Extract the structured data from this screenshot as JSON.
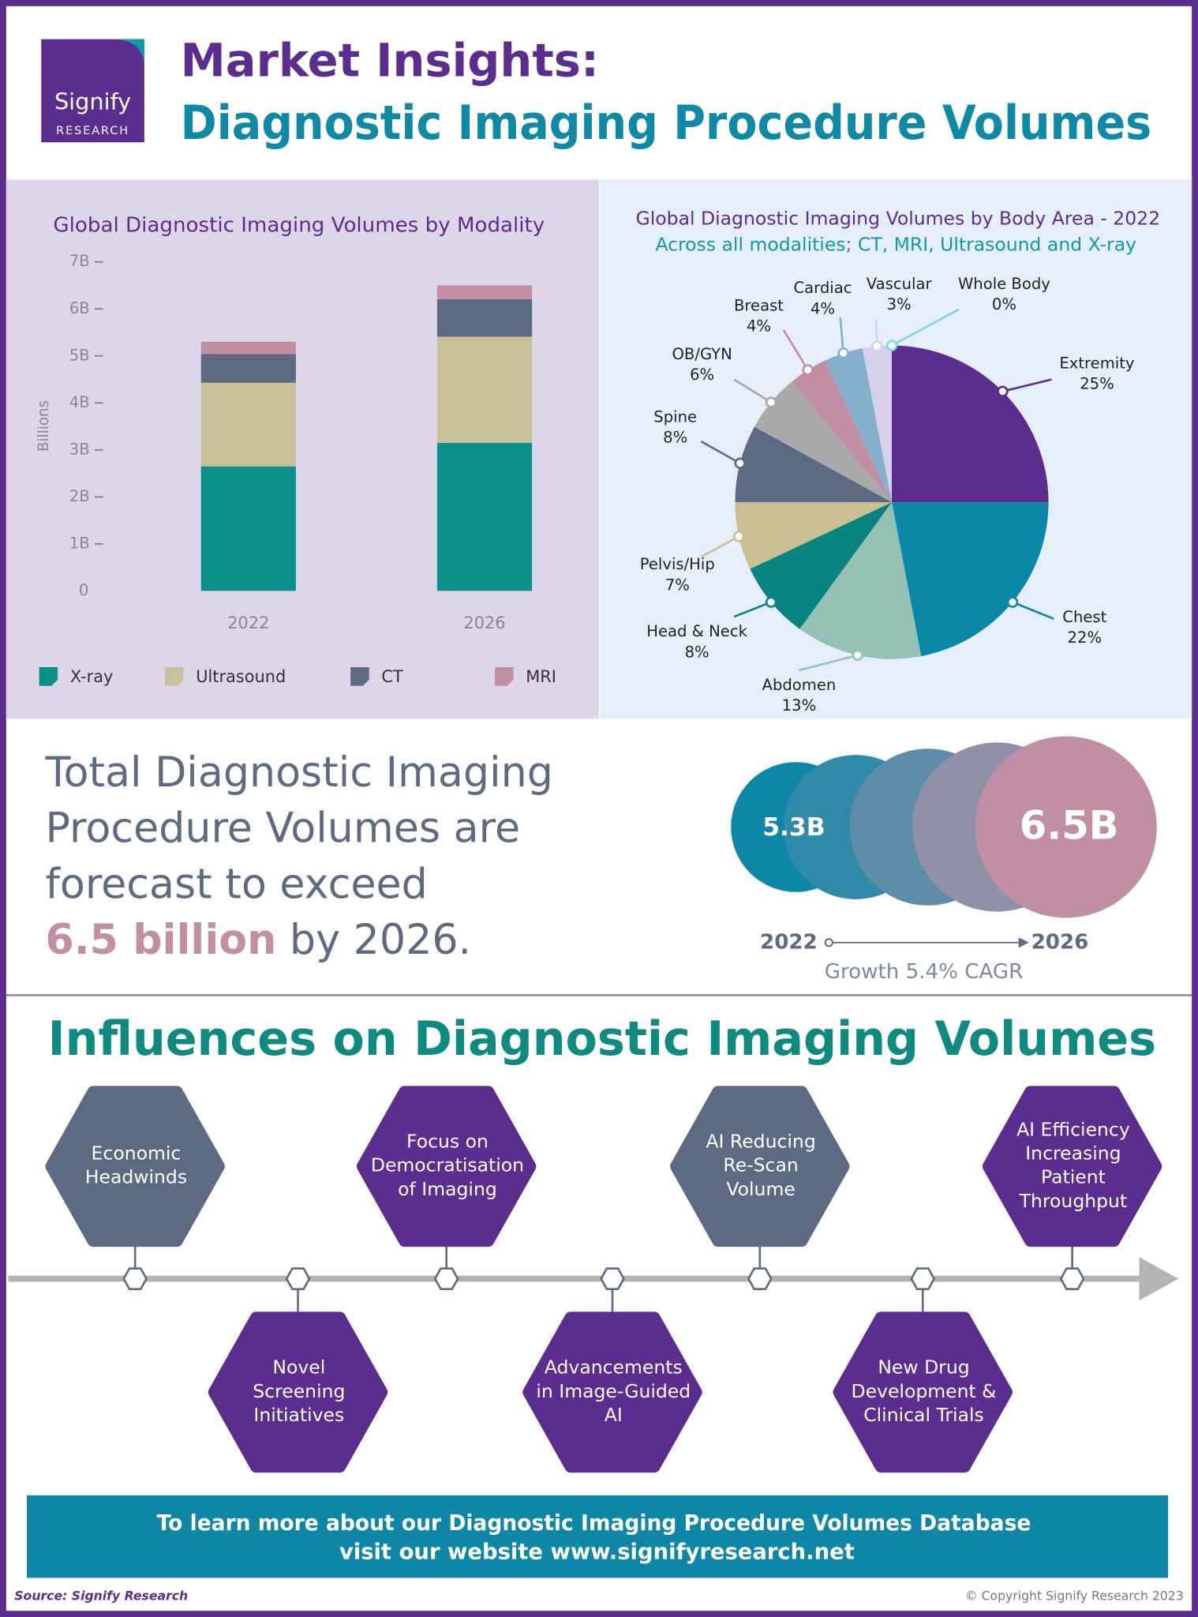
{
  "header": {
    "logo": {
      "name": "Signify",
      "tagline": "RESEARCH"
    },
    "title": "Market Insights:",
    "subtitle": "Diagnostic Imaging Procedure Volumes"
  },
  "chart_data": [
    {
      "type": "bar",
      "stacked": true,
      "title": "Global Diagnostic Imaging Volumes by Modality",
      "y_label": "Billions",
      "categories": [
        "2022",
        "2026"
      ],
      "series": [
        {
          "name": "X-ray",
          "color": "#0a8f8a",
          "values": [
            2.65,
            3.15
          ]
        },
        {
          "name": "Ultrasound",
          "color": "#c8c096",
          "values": [
            1.78,
            2.26
          ]
        },
        {
          "name": "CT",
          "color": "#5d6b82",
          "values": [
            0.61,
            0.8
          ]
        },
        {
          "name": "MRI",
          "color": "#c28ea4",
          "values": [
            0.26,
            0.29
          ]
        }
      ],
      "ylim": [
        0,
        7
      ],
      "yticks": [
        0,
        {
          "value": 1,
          "label": "1B"
        },
        {
          "value": 2,
          "label": "2B"
        },
        {
          "value": 3,
          "label": "3B"
        },
        {
          "value": 4,
          "label": "4B"
        },
        {
          "value": 5,
          "label": "5B"
        },
        {
          "value": 6,
          "label": "6B"
        },
        {
          "value": 7,
          "label": "7B"
        }
      ]
    },
    {
      "type": "pie",
      "title": "Global Diagnostic Imaging Volumes by Body Area - 2022",
      "subtitle": "Across all modalities; CT, MRI, Ultrasound and X-ray",
      "categories": [
        "Extremity",
        "Chest",
        "Abdomen",
        "Head & Neck",
        "Pelvis/Hip",
        "Spine",
        "OB/GYN",
        "Breast",
        "Cardiac",
        "Vascular",
        "Whole Body"
      ],
      "values": [
        25,
        22,
        13,
        8,
        7,
        8,
        6,
        4,
        4,
        3,
        0
      ],
      "value_labels": [
        "25%",
        "22%",
        "13%",
        "8%",
        "7%",
        "8%",
        "6%",
        "4%",
        "4%",
        "3%",
        "0%"
      ],
      "colors": [
        "#5a2d8f",
        "#0a88a6",
        "#95c1b4",
        "#0a8480",
        "#c9bf93",
        "#5d6b82",
        "#a9a9a9",
        "#c28ea4",
        "#85b0cc",
        "#d6d0ea",
        "#7fd7d6"
      ]
    }
  ],
  "summary": {
    "lead": [
      "Total Diagnostic Imaging",
      "Procedure Volumes are",
      "forecast to exceed"
    ],
    "highlight": "6.5 billion",
    "tail": "by 2026.",
    "bubbles": {
      "start": "5.3B",
      "end": "6.5B"
    },
    "years": {
      "start": "2022",
      "end": "2026"
    },
    "growth": "Growth 5.4% CAGR"
  },
  "influences": {
    "title": "Influences on Diagnostic Imaging Volumes",
    "items": [
      {
        "lines": [
          "Economic",
          "Headwinds"
        ],
        "color": "#5d6b82"
      },
      {
        "lines": [
          "Novel",
          "Screening",
          "Initiatives"
        ],
        "color": "#5a2d8f"
      },
      {
        "lines": [
          "Focus on",
          "Democratisation",
          "of Imaging"
        ],
        "color": "#5a2d8f"
      },
      {
        "lines": [
          "Advancements",
          "in Image-Guided",
          "AI"
        ],
        "color": "#5a2d8f"
      },
      {
        "lines": [
          "AI Reducing",
          "Re-Scan",
          "Volume"
        ],
        "color": "#5d6b82"
      },
      {
        "lines": [
          "New Drug",
          "Development &",
          "Clinical Trials"
        ],
        "color": "#5a2d8f"
      },
      {
        "lines": [
          "AI Efficiency",
          "Increasing",
          "Patient",
          "Throughput"
        ],
        "color": "#5a2d8f"
      }
    ]
  },
  "footer": {
    "banner": [
      "To learn more about our Diagnostic Imaging Procedure Volumes Database",
      "visit our website www.signifyresearch.net"
    ],
    "source": "Source: Signify Research",
    "copyright": "© Copyright Signify Research 2023"
  }
}
